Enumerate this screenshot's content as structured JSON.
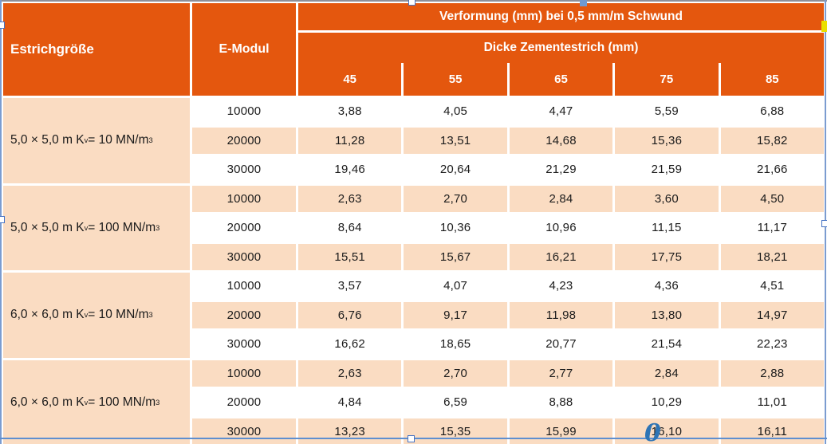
{
  "colors": {
    "header_bg": "#e4570e",
    "row_alt_bg": "#fadcc2",
    "row_bg": "#ffffff",
    "header_text": "#ffffff",
    "body_text": "#1b1b1b",
    "selection_line": "#7b9cd0",
    "selection_handle_border": "#4472c4",
    "yellow_marker": "#eae000",
    "caption_text": "#2e74b5"
  },
  "overlay": {
    "caption_character": "0"
  },
  "table": {
    "header": {
      "col_estrich": "Estrichgröße",
      "col_emodul": "E-Modul",
      "span_title": "Verformung (mm) bei 0,5 mm/m Schwund",
      "span_subtitle": "Dicke Zementestrich (mm)",
      "thickness_columns": [
        "45",
        "55",
        "65",
        "75",
        "85"
      ]
    },
    "groups": [
      {
        "label": {
          "prefix": "5,0 × 5,0 m K",
          "sub": "v",
          "mid": "= 10 MN/m",
          "sup": "3"
        },
        "rows": [
          {
            "e_modul": "10000",
            "values": [
              "3,88",
              "4,05",
              "4,47",
              "5,59",
              "6,88"
            ]
          },
          {
            "e_modul": "20000",
            "values": [
              "11,28",
              "13,51",
              "14,68",
              "15,36",
              "15,82"
            ]
          },
          {
            "e_modul": "30000",
            "values": [
              "19,46",
              "20,64",
              "21,29",
              "21,59",
              "21,66"
            ]
          }
        ]
      },
      {
        "label": {
          "prefix": "5,0 × 5,0 m K",
          "sub": "v",
          "mid": "= 100 MN/m",
          "sup": "3"
        },
        "rows": [
          {
            "e_modul": "10000",
            "values": [
              "2,63",
              "2,70",
              "2,84",
              "3,60",
              "4,50"
            ]
          },
          {
            "e_modul": "20000",
            "values": [
              "8,64",
              "10,36",
              "10,96",
              "11,15",
              "11,17"
            ]
          },
          {
            "e_modul": "30000",
            "values": [
              "15,51",
              "15,67",
              "16,21",
              "17,75",
              "18,21"
            ]
          }
        ]
      },
      {
        "label": {
          "prefix": "6,0 × 6,0 m K",
          "sub": "v",
          "mid": "= 10 MN/m",
          "sup": "3"
        },
        "rows": [
          {
            "e_modul": "10000",
            "values": [
              "3,57",
              "4,07",
              "4,23",
              "4,36",
              "4,51"
            ]
          },
          {
            "e_modul": "20000",
            "values": [
              "6,76",
              "9,17",
              "11,98",
              "13,80",
              "14,97"
            ]
          },
          {
            "e_modul": "30000",
            "values": [
              "16,62",
              "18,65",
              "20,77",
              "21,54",
              "22,23"
            ]
          }
        ]
      },
      {
        "label": {
          "prefix": "6,0 × 6,0 m K",
          "sub": "v",
          "mid": "= 100 MN/m",
          "sup": "3"
        },
        "rows": [
          {
            "e_modul": "10000",
            "values": [
              "2,63",
              "2,70",
              "2,77",
              "2,84",
              "2,88"
            ]
          },
          {
            "e_modul": "20000",
            "values": [
              "4,84",
              "6,59",
              "8,88",
              "10,29",
              "11,01"
            ]
          },
          {
            "e_modul": "30000",
            "values": [
              "13,23",
              "15,35",
              "15,99",
              "16,10",
              "16,11"
            ]
          }
        ]
      }
    ]
  }
}
